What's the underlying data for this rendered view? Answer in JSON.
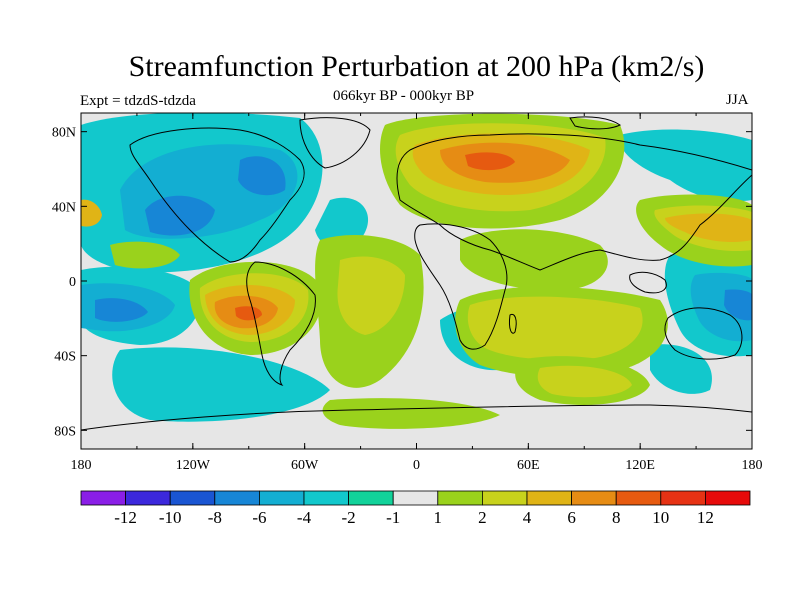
{
  "title": "Streamfunction Perturbation at 200 hPa (km2/s)",
  "experiment": "Expt = tdzdS-tdzda",
  "period": "066kyr BP - 000kyr BP",
  "season": "JJA",
  "map": {
    "x_ticks": [
      "180",
      "120W",
      "60W",
      "0",
      "60E",
      "120E",
      "180"
    ],
    "y_ticks": [
      "80N",
      "40N",
      "0",
      "40S",
      "80S"
    ],
    "neutral_color": "#e6e6e6"
  },
  "colorbar": {
    "labels": [
      "-12",
      "-10",
      "-8",
      "-6",
      "-4",
      "-2",
      "-1",
      "1",
      "2",
      "4",
      "6",
      "8",
      "10",
      "12"
    ],
    "colors": [
      "#8a1ee6",
      "#3c28dc",
      "#1a55d2",
      "#1786d6",
      "#13aed2",
      "#12c8cc",
      "#12d29a",
      "#e6e6e6",
      "#9ad21c",
      "#c8d21c",
      "#e0b416",
      "#e68c14",
      "#e65a10",
      "#e63214",
      "#e60a0a"
    ]
  }
}
